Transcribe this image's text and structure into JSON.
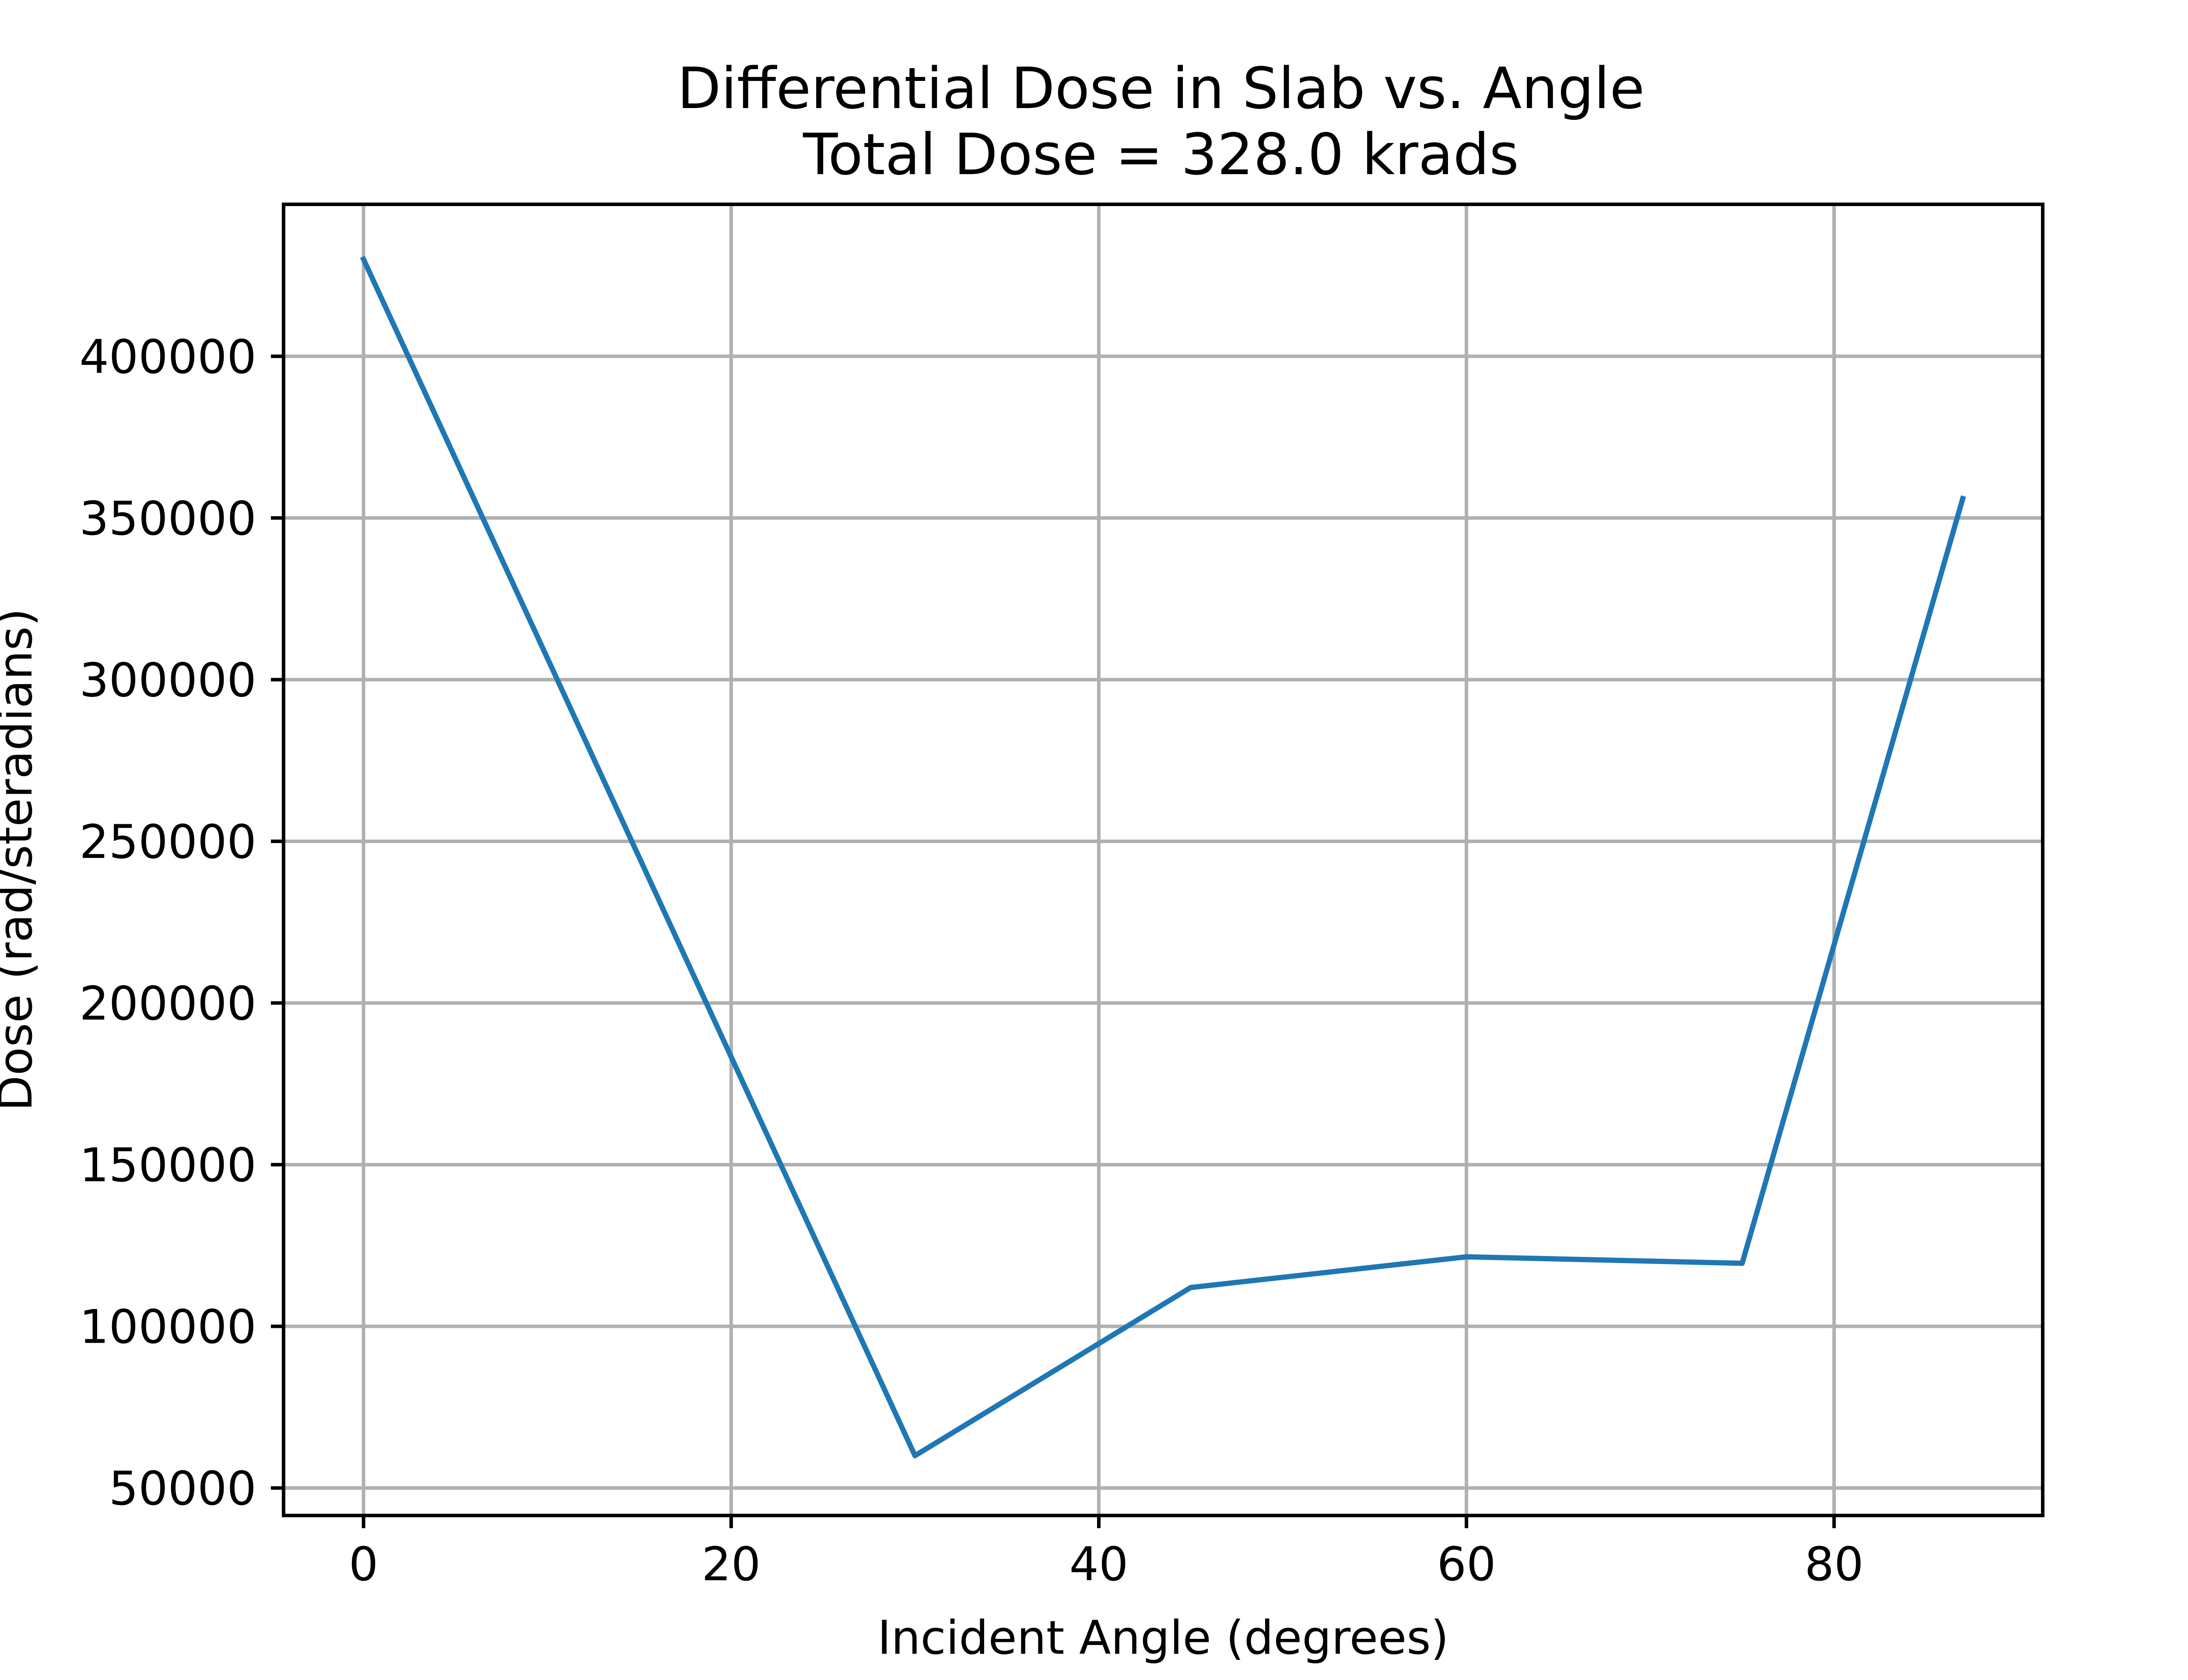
{
  "chart_data": {
    "type": "line",
    "title": "Differential Dose in Slab vs. Angle",
    "subtitle": "Total Dose = 328.0 krads",
    "xlabel": "Incident Angle (degrees)",
    "ylabel": "Dose (rad/steradians)",
    "x": [
      0,
      30,
      45,
      60,
      75,
      87
    ],
    "series": [
      {
        "values": [
          430000,
          60000,
          112000,
          121500,
          119500,
          356000
        ],
        "color": "#1f77b4"
      }
    ],
    "xlim": [
      -4.35,
      91.35
    ],
    "ylim": [
      41500,
      447000
    ],
    "xticks": [
      0,
      20,
      40,
      60,
      80
    ],
    "xtick_labels": [
      "0",
      "20",
      "40",
      "60",
      "80"
    ],
    "yticks": [
      50000,
      100000,
      150000,
      200000,
      250000,
      300000,
      350000,
      400000
    ],
    "ytick_labels": [
      "50000",
      "100000",
      "150000",
      "200000",
      "250000",
      "300000",
      "350000",
      "400000"
    ],
    "grid": true,
    "legend": false
  }
}
